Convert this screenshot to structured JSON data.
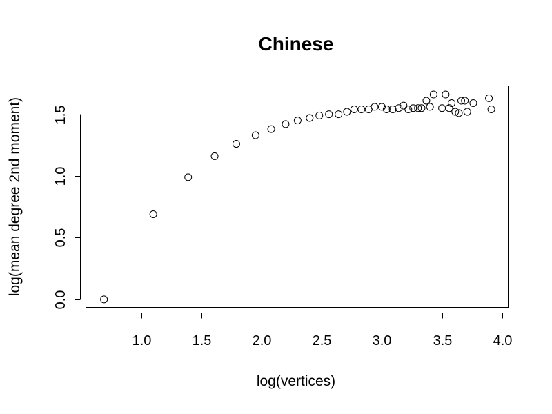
{
  "chart_data": {
    "type": "scatter",
    "title": "Chinese",
    "xlabel": "log(vertices)",
    "ylabel": "log(mean degree 2nd moment)",
    "xlim": [
      0.54,
      4.05
    ],
    "ylim": [
      -0.065,
      1.73
    ],
    "x_ticks": [
      1.0,
      1.5,
      2.0,
      2.5,
      3.0,
      3.5,
      4.0
    ],
    "x_tick_labels": [
      "1.0",
      "1.5",
      "2.0",
      "2.5",
      "3.0",
      "3.5",
      "4.0"
    ],
    "y_ticks": [
      0.0,
      0.5,
      1.0,
      1.5
    ],
    "y_tick_labels": [
      "0.0",
      "0.5",
      "1.0",
      "1.5"
    ],
    "grid": false,
    "legend": "none",
    "points": [
      [
        0.69,
        0.0
      ],
      [
        1.1,
        0.69
      ],
      [
        1.39,
        0.99
      ],
      [
        1.61,
        1.16
      ],
      [
        1.79,
        1.26
      ],
      [
        1.95,
        1.33
      ],
      [
        2.08,
        1.38
      ],
      [
        2.2,
        1.42
      ],
      [
        2.3,
        1.45
      ],
      [
        2.4,
        1.47
      ],
      [
        2.48,
        1.49
      ],
      [
        2.56,
        1.5
      ],
      [
        2.64,
        1.5
      ],
      [
        2.71,
        1.52
      ],
      [
        2.77,
        1.54
      ],
      [
        2.83,
        1.54
      ],
      [
        2.89,
        1.54
      ],
      [
        2.94,
        1.56
      ],
      [
        3.0,
        1.56
      ],
      [
        3.04,
        1.54
      ],
      [
        3.09,
        1.54
      ],
      [
        3.14,
        1.55
      ],
      [
        3.18,
        1.57
      ],
      [
        3.22,
        1.54
      ],
      [
        3.26,
        1.55
      ],
      [
        3.3,
        1.55
      ],
      [
        3.33,
        1.55
      ],
      [
        3.37,
        1.61
      ],
      [
        3.4,
        1.56
      ],
      [
        3.43,
        1.66
      ],
      [
        3.5,
        1.55
      ],
      [
        3.53,
        1.66
      ],
      [
        3.56,
        1.55
      ],
      [
        3.58,
        1.59
      ],
      [
        3.61,
        1.52
      ],
      [
        3.64,
        1.51
      ],
      [
        3.66,
        1.61
      ],
      [
        3.69,
        1.61
      ],
      [
        3.71,
        1.52
      ],
      [
        3.76,
        1.59
      ],
      [
        3.89,
        1.63
      ],
      [
        3.91,
        1.54
      ]
    ]
  }
}
